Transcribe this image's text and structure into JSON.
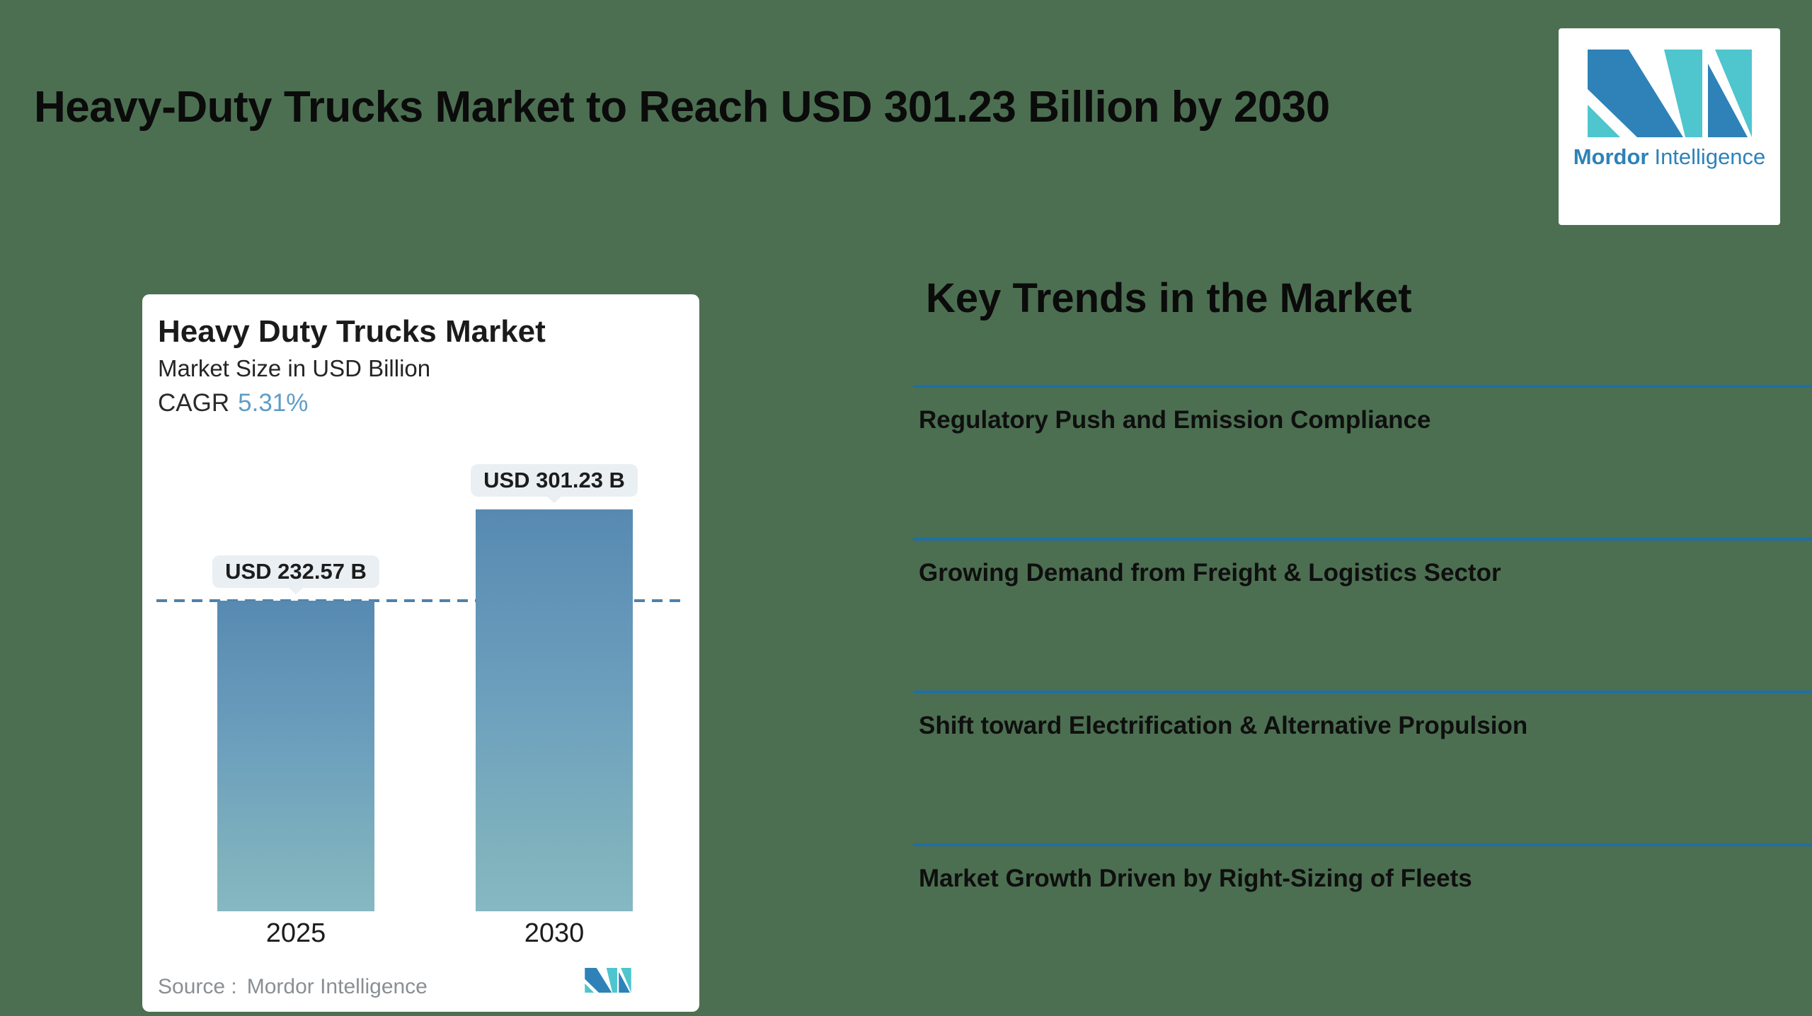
{
  "page": {
    "background_color": "#4c6f51"
  },
  "header": {
    "title": "Heavy-Duty Trucks Market to Reach USD 301.23 Billion by 2030"
  },
  "brand_logo": {
    "word_bold": "Mordor",
    "word_light": "Intelligence",
    "blue": "#2e82b8",
    "teal": "#4fc5ce"
  },
  "chart_card": {
    "title": "Heavy Duty Trucks Market",
    "subtitle": "Market Size in USD Billion",
    "cagr_label": "CAGR",
    "cagr_value": "5.31%",
    "bars": [
      {
        "year": "2025",
        "label": "USD 232.57 B"
      },
      {
        "year": "2030",
        "label": "USD 301.23 B"
      }
    ],
    "source_label": "Source :",
    "source_value": "Mordor Intelligence"
  },
  "chart_data": {
    "type": "bar",
    "title": "Heavy Duty Trucks Market",
    "subtitle": "Market Size in USD Billion",
    "categories": [
      "2025",
      "2030"
    ],
    "values": [
      232.57,
      301.23
    ],
    "unit": "USD Billion",
    "cagr_percent": 5.31,
    "data_labels": [
      "USD 232.57 B",
      "USD 301.23 B"
    ],
    "reference_line": {
      "value": 232.57,
      "style": "dashed",
      "color": "#4e81ab"
    },
    "bar_gradient": [
      "#578ab1",
      "#85b8c2"
    ],
    "ylim": [
      0,
      301.23
    ],
    "grid": false,
    "legend": false,
    "source": "Mordor Intelligence"
  },
  "trends": {
    "heading": "Key Trends in the Market",
    "divider_color": "#1e6fa8",
    "items": [
      {
        "label": "Regulatory Push and Emission Compliance"
      },
      {
        "label": "Growing Demand from Freight & Logistics Sector"
      },
      {
        "label": "Shift toward Electrification & Alternative Propulsion"
      },
      {
        "label": "Market Growth Driven by Right-Sizing of Fleets"
      }
    ]
  }
}
